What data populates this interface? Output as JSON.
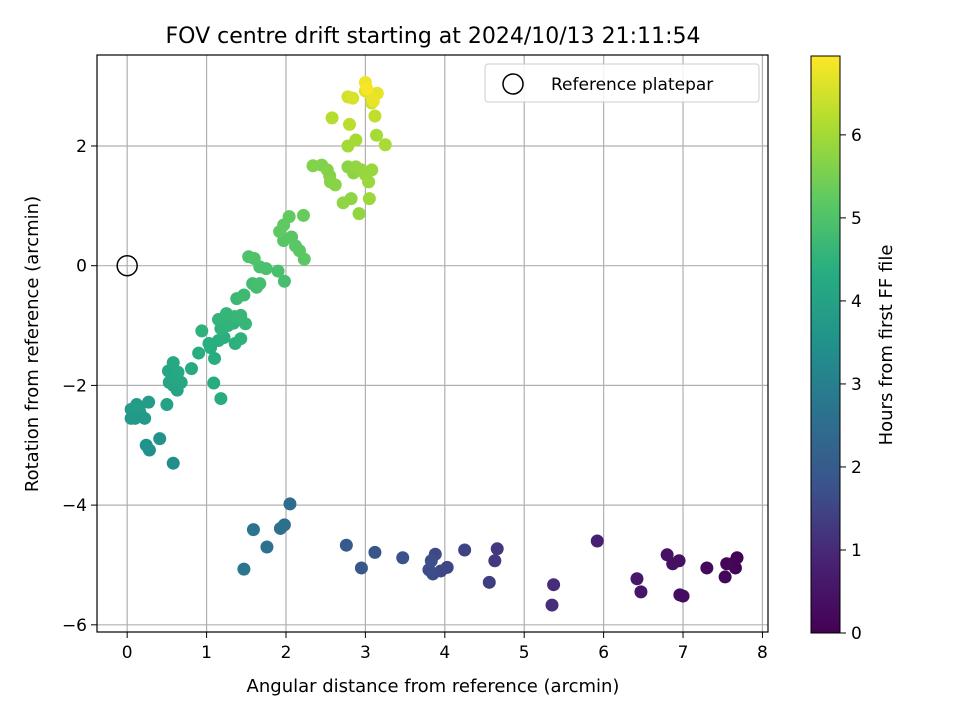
{
  "chart_data": {
    "type": "scatter",
    "title": "FOV centre drift starting at 2024/10/13 21:11:54",
    "xlabel": "Angular distance from reference (arcmin)",
    "ylabel": "Rotation from reference (arcmin)",
    "xlim": [
      -0.38,
      8.07
    ],
    "ylim": [
      -6.12,
      3.52
    ],
    "x_ticks": [
      0,
      1,
      2,
      3,
      4,
      5,
      6,
      7,
      8
    ],
    "x_tick_labels": [
      "0",
      "1",
      "2",
      "3",
      "4",
      "5",
      "6",
      "7",
      "8"
    ],
    "y_ticks": [
      -6,
      -4,
      -2,
      0,
      2
    ],
    "y_tick_labels": [
      "−6",
      "−4",
      "−2",
      "0",
      "2"
    ],
    "grid": true,
    "legend": {
      "placement": "top-right",
      "label": "Reference platepar"
    },
    "reference_point": {
      "x": 0,
      "y": 0
    },
    "colorbar": {
      "label": "Hours from first FF file",
      "range": [
        0,
        6.95
      ],
      "ticks": [
        0,
        1,
        2,
        3,
        4,
        5,
        6
      ],
      "tick_labels": [
        "0",
        "1",
        "2",
        "3",
        "4",
        "5",
        "6"
      ],
      "colormap": "viridis"
    },
    "points": [
      {
        "x": 7.68,
        "y": -4.88,
        "c": 0.05
      },
      {
        "x": 7.62,
        "y": -4.98,
        "c": 0.08
      },
      {
        "x": 7.66,
        "y": -5.05,
        "c": 0.1
      },
      {
        "x": 7.55,
        "y": -4.98,
        "c": 0.12
      },
      {
        "x": 7.53,
        "y": -5.2,
        "c": 0.15
      },
      {
        "x": 7.3,
        "y": -5.05,
        "c": 0.2
      },
      {
        "x": 7.0,
        "y": -5.52,
        "c": 0.3
      },
      {
        "x": 6.96,
        "y": -5.5,
        "c": 0.32
      },
      {
        "x": 6.95,
        "y": -4.93,
        "c": 0.4
      },
      {
        "x": 6.87,
        "y": -4.98,
        "c": 0.42
      },
      {
        "x": 6.8,
        "y": -4.83,
        "c": 0.45
      },
      {
        "x": 6.47,
        "y": -5.45,
        "c": 0.55
      },
      {
        "x": 6.42,
        "y": -5.23,
        "c": 0.6
      },
      {
        "x": 5.92,
        "y": -4.6,
        "c": 0.8
      },
      {
        "x": 5.37,
        "y": -5.33,
        "c": 1.05
      },
      {
        "x": 5.35,
        "y": -5.67,
        "c": 1.1
      },
      {
        "x": 4.66,
        "y": -4.73,
        "c": 1.25
      },
      {
        "x": 4.63,
        "y": -4.93,
        "c": 1.3
      },
      {
        "x": 4.56,
        "y": -5.29,
        "c": 1.35
      },
      {
        "x": 4.25,
        "y": -4.75,
        "c": 1.45
      },
      {
        "x": 4.03,
        "y": -5.04,
        "c": 1.5
      },
      {
        "x": 3.95,
        "y": -5.1,
        "c": 1.55
      },
      {
        "x": 3.88,
        "y": -4.82,
        "c": 1.6
      },
      {
        "x": 3.85,
        "y": -5.15,
        "c": 1.62
      },
      {
        "x": 3.8,
        "y": -5.08,
        "c": 1.65
      },
      {
        "x": 3.83,
        "y": -4.93,
        "c": 1.68
      },
      {
        "x": 3.47,
        "y": -4.88,
        "c": 1.75
      },
      {
        "x": 3.12,
        "y": -4.79,
        "c": 1.85
      },
      {
        "x": 2.95,
        "y": -5.05,
        "c": 1.9
      },
      {
        "x": 2.76,
        "y": -4.67,
        "c": 1.95
      },
      {
        "x": 2.05,
        "y": -3.98,
        "c": 2.5
      },
      {
        "x": 1.98,
        "y": -4.33,
        "c": 2.55
      },
      {
        "x": 1.93,
        "y": -4.39,
        "c": 2.6
      },
      {
        "x": 1.76,
        "y": -4.7,
        "c": 2.65
      },
      {
        "x": 1.59,
        "y": -4.41,
        "c": 2.7
      },
      {
        "x": 1.47,
        "y": -5.07,
        "c": 2.75
      },
      {
        "x": 0.58,
        "y": -3.3,
        "c": 3.4
      },
      {
        "x": 0.28,
        "y": -3.08,
        "c": 3.45
      },
      {
        "x": 0.24,
        "y": -3.0,
        "c": 3.5
      },
      {
        "x": 0.41,
        "y": -2.89,
        "c": 3.55
      },
      {
        "x": 0.05,
        "y": -2.55,
        "c": 3.7
      },
      {
        "x": 0.1,
        "y": -2.55,
        "c": 3.72
      },
      {
        "x": 0.22,
        "y": -2.55,
        "c": 3.74
      },
      {
        "x": 0.16,
        "y": -2.45,
        "c": 3.76
      },
      {
        "x": 0.05,
        "y": -2.4,
        "c": 3.78
      },
      {
        "x": 0.12,
        "y": -2.32,
        "c": 3.8
      },
      {
        "x": 0.27,
        "y": -2.28,
        "c": 3.82
      },
      {
        "x": 0.15,
        "y": -2.38,
        "c": 3.84
      },
      {
        "x": 0.5,
        "y": -2.32,
        "c": 4.0
      },
      {
        "x": 0.63,
        "y": -2.08,
        "c": 4.05
      },
      {
        "x": 0.53,
        "y": -1.95,
        "c": 4.08
      },
      {
        "x": 0.58,
        "y": -2.0,
        "c": 4.1
      },
      {
        "x": 0.68,
        "y": -1.95,
        "c": 4.12
      },
      {
        "x": 0.6,
        "y": -1.86,
        "c": 4.14
      },
      {
        "x": 0.52,
        "y": -1.76,
        "c": 4.16
      },
      {
        "x": 0.64,
        "y": -1.78,
        "c": 4.18
      },
      {
        "x": 0.58,
        "y": -1.62,
        "c": 4.2
      },
      {
        "x": 0.81,
        "y": -1.72,
        "c": 4.25
      },
      {
        "x": 1.18,
        "y": -2.22,
        "c": 4.28
      },
      {
        "x": 1.09,
        "y": -1.96,
        "c": 4.3
      },
      {
        "x": 1.1,
        "y": -1.55,
        "c": 4.32
      },
      {
        "x": 0.9,
        "y": -1.46,
        "c": 4.34
      },
      {
        "x": 1.05,
        "y": -1.37,
        "c": 4.36
      },
      {
        "x": 1.03,
        "y": -1.3,
        "c": 4.38
      },
      {
        "x": 1.15,
        "y": -1.25,
        "c": 4.4
      },
      {
        "x": 1.22,
        "y": -1.2,
        "c": 4.42
      },
      {
        "x": 1.36,
        "y": -1.3,
        "c": 4.44
      },
      {
        "x": 1.43,
        "y": -1.22,
        "c": 4.46
      },
      {
        "x": 0.94,
        "y": -1.09,
        "c": 4.48
      },
      {
        "x": 1.18,
        "y": -1.05,
        "c": 4.5
      },
      {
        "x": 1.27,
        "y": -1.0,
        "c": 4.52
      },
      {
        "x": 1.34,
        "y": -0.96,
        "c": 4.54
      },
      {
        "x": 1.15,
        "y": -0.9,
        "c": 4.56
      },
      {
        "x": 1.25,
        "y": -0.8,
        "c": 4.58
      },
      {
        "x": 1.35,
        "y": -0.85,
        "c": 4.6
      },
      {
        "x": 1.49,
        "y": -0.97,
        "c": 4.62
      },
      {
        "x": 1.43,
        "y": -0.83,
        "c": 4.64
      },
      {
        "x": 1.38,
        "y": -0.55,
        "c": 4.7
      },
      {
        "x": 1.47,
        "y": -0.49,
        "c": 4.72
      },
      {
        "x": 1.58,
        "y": -0.3,
        "c": 4.8
      },
      {
        "x": 1.63,
        "y": -0.36,
        "c": 4.82
      },
      {
        "x": 1.67,
        "y": -0.3,
        "c": 4.84
      },
      {
        "x": 1.98,
        "y": -0.26,
        "c": 4.86
      },
      {
        "x": 1.9,
        "y": -0.09,
        "c": 4.9
      },
      {
        "x": 1.67,
        "y": -0.02,
        "c": 4.92
      },
      {
        "x": 1.75,
        "y": -0.05,
        "c": 4.94
      },
      {
        "x": 1.53,
        "y": 0.15,
        "c": 4.98
      },
      {
        "x": 1.6,
        "y": 0.12,
        "c": 5.0
      },
      {
        "x": 1.97,
        "y": 0.42,
        "c": 5.1
      },
      {
        "x": 2.07,
        "y": 0.48,
        "c": 5.12
      },
      {
        "x": 2.12,
        "y": 0.33,
        "c": 5.14
      },
      {
        "x": 2.17,
        "y": 0.25,
        "c": 5.16
      },
      {
        "x": 2.23,
        "y": 0.11,
        "c": 5.18
      },
      {
        "x": 1.92,
        "y": 0.57,
        "c": 5.2
      },
      {
        "x": 1.97,
        "y": 0.68,
        "c": 5.22
      },
      {
        "x": 2.04,
        "y": 0.82,
        "c": 5.24
      },
      {
        "x": 2.22,
        "y": 0.84,
        "c": 5.3
      },
      {
        "x": 2.45,
        "y": 1.68,
        "c": 5.6
      },
      {
        "x": 2.34,
        "y": 1.67,
        "c": 5.62
      },
      {
        "x": 2.52,
        "y": 1.6,
        "c": 5.64
      },
      {
        "x": 2.55,
        "y": 1.5,
        "c": 5.66
      },
      {
        "x": 2.56,
        "y": 1.4,
        "c": 5.68
      },
      {
        "x": 2.62,
        "y": 1.35,
        "c": 5.7
      },
      {
        "x": 2.78,
        "y": 1.65,
        "c": 5.72
      },
      {
        "x": 2.85,
        "y": 1.55,
        "c": 5.74
      },
      {
        "x": 2.82,
        "y": 1.12,
        "c": 5.76
      },
      {
        "x": 2.72,
        "y": 1.05,
        "c": 5.78
      },
      {
        "x": 2.92,
        "y": 0.87,
        "c": 5.8
      },
      {
        "x": 2.88,
        "y": 1.65,
        "c": 5.82
      },
      {
        "x": 2.95,
        "y": 1.6,
        "c": 5.84
      },
      {
        "x": 3.0,
        "y": 1.52,
        "c": 5.86
      },
      {
        "x": 3.08,
        "y": 1.6,
        "c": 5.88
      },
      {
        "x": 3.04,
        "y": 1.4,
        "c": 5.9
      },
      {
        "x": 3.05,
        "y": 1.12,
        "c": 5.92
      },
      {
        "x": 2.78,
        "y": 2.0,
        "c": 6.0
      },
      {
        "x": 2.88,
        "y": 2.1,
        "c": 6.02
      },
      {
        "x": 3.14,
        "y": 2.18,
        "c": 6.04
      },
      {
        "x": 3.25,
        "y": 2.02,
        "c": 6.06
      },
      {
        "x": 2.58,
        "y": 2.47,
        "c": 6.2
      },
      {
        "x": 2.8,
        "y": 2.36,
        "c": 6.25
      },
      {
        "x": 3.12,
        "y": 2.5,
        "c": 6.3
      },
      {
        "x": 3.08,
        "y": 2.72,
        "c": 6.4
      },
      {
        "x": 2.78,
        "y": 2.82,
        "c": 6.5
      },
      {
        "x": 2.84,
        "y": 2.8,
        "c": 6.55
      },
      {
        "x": 3.0,
        "y": 2.92,
        "c": 6.6
      },
      {
        "x": 3.05,
        "y": 2.88,
        "c": 6.65
      },
      {
        "x": 3.15,
        "y": 2.88,
        "c": 6.7
      },
      {
        "x": 3.1,
        "y": 2.75,
        "c": 6.75
      },
      {
        "x": 3.0,
        "y": 3.06,
        "c": 6.8
      },
      {
        "x": 3.02,
        "y": 2.95,
        "c": 6.9
      }
    ]
  }
}
